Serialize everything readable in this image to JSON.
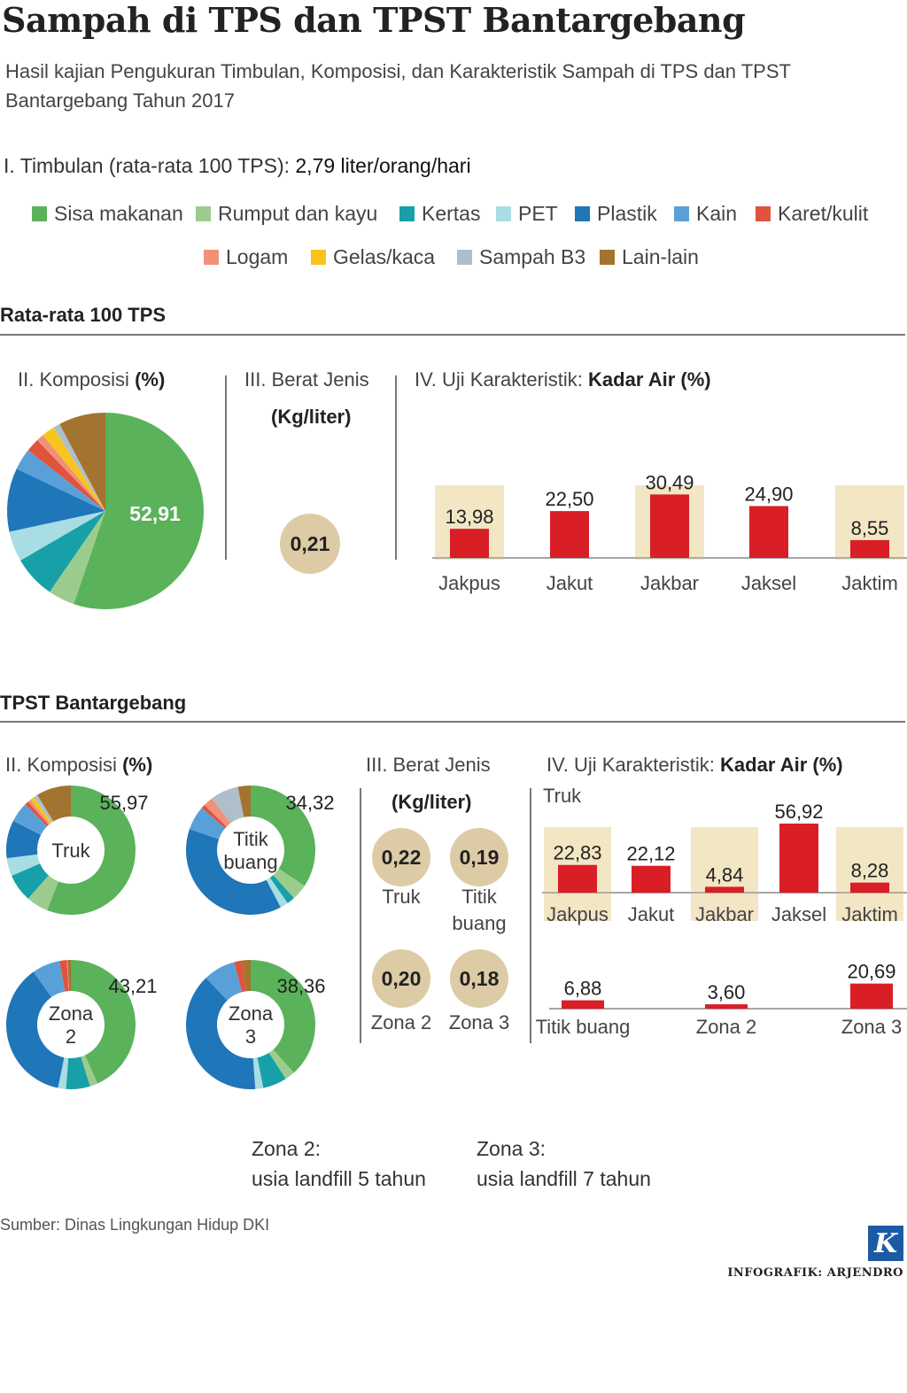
{
  "header": {
    "title": "Sampah di TPS dan TPST Bantargebang",
    "subtitle": "Hasil kajian Pengukuran Timbulan, Komposisi, dan Karakteristik Sampah di TPS dan TPST Bantargebang Tahun 2017",
    "timbulan_label": "I. Timbulan (rata-rata 100 TPS):",
    "timbulan_value": "2,79 liter/orang/hari"
  },
  "legend": [
    {
      "label": "Sisa makanan",
      "color": "#5ab25a"
    },
    {
      "label": "Rumput dan kayu",
      "color": "#9ccc8d"
    },
    {
      "label": "Kertas",
      "color": "#17a0a8"
    },
    {
      "label": "PET",
      "color": "#a8dde4"
    },
    {
      "label": "Plastik",
      "color": "#1f76b8"
    },
    {
      "label": "Kain",
      "color": "#5aa0d8"
    },
    {
      "label": "Karet/kulit",
      "color": "#e0533d"
    },
    {
      "label": "Logam",
      "color": "#f1917a"
    },
    {
      "label": "Gelas/kaca",
      "color": "#f7c51c"
    },
    {
      "label": "Sampah B3",
      "color": "#aebfc9"
    },
    {
      "label": "Lain-lain",
      "color": "#a2742f"
    }
  ],
  "section1": {
    "heading": "Rata-rata 100 TPS",
    "komposisi_label": "II. Komposisi",
    "komposisi_unit": "(%)",
    "berat_label": "III. Berat Jenis",
    "berat_unit": "(Kg/liter)",
    "berat_value": "0,21",
    "kadar_label": "IV. Uji Karakteristik:",
    "kadar_bold": "Kadar Air (%)"
  },
  "section2": {
    "heading": "TPST Bantargebang",
    "komposisi_label": "II. Komposisi",
    "komposisi_unit": "(%)",
    "berat_label": "III. Berat Jenis",
    "berat_unit": "(Kg/liter)",
    "berat_items": [
      {
        "value": "0,22",
        "label": "Truk"
      },
      {
        "value": "0,19",
        "label": "Titik buang"
      },
      {
        "value": "0,20",
        "label": "Zona 2"
      },
      {
        "value": "0,18",
        "label": "Zona 3"
      }
    ],
    "kadar_label": "IV. Uji Karakteristik:",
    "kadar_bold": "Kadar Air (%)",
    "truk_label": "Truk"
  },
  "notes": {
    "zona2_title": "Zona 2:",
    "zona2_text": "usia landfill 5 tahun",
    "zona3_title": "Zona 3:",
    "zona3_text": "usia landfill 7 tahun"
  },
  "footer": {
    "source": "Sumber: Dinas Lingkungan Hidup DKI",
    "credit": "INFOGRAFIK: ARJENDRO",
    "logo": "K"
  },
  "chart_data": [
    {
      "id": "pie-100tps",
      "type": "pie",
      "title": "II. Komposisi (%)",
      "categories": [
        "Sisa makanan",
        "Rumput dan kayu",
        "Kertas",
        "PET",
        "Plastik",
        "Kain",
        "Karet/kulit",
        "Logam",
        "Gelas/kaca",
        "Sampah B3",
        "Lain-lain"
      ],
      "values": [
        52.91,
        4.2,
        6.7,
        4.8,
        10.0,
        3.4,
        2.1,
        1.2,
        2.0,
        1.1,
        7.4
      ],
      "value_label": "52,91"
    },
    {
      "id": "bar-100tps-kadar",
      "type": "bar",
      "title": "IV. Uji Karakteristik: Kadar Air (%)",
      "categories": [
        "Jakpus",
        "Jakut",
        "Jakbar",
        "Jaksel",
        "Jaktim"
      ],
      "values": [
        13.98,
        22.5,
        30.49,
        24.9,
        8.55
      ],
      "labels": [
        "13,98",
        "22,50",
        "30,49",
        "24,90",
        "8,55"
      ],
      "highlight": [
        true,
        false,
        true,
        false,
        true
      ]
    },
    {
      "id": "donut-truk",
      "type": "pie",
      "title": "Truk",
      "categories": [
        "Sisa makanan",
        "Rumput dan kayu",
        "Kertas",
        "PET",
        "Plastik",
        "Kain",
        "Karet/kulit",
        "Logam",
        "Gelas/kaca",
        "Sampah B3",
        "Lain-lain"
      ],
      "values": [
        55.97,
        5.5,
        7.0,
        4.5,
        9.5,
        5.0,
        1.0,
        0.8,
        1.0,
        1.0,
        8.7
      ],
      "value_label": "55,97"
    },
    {
      "id": "donut-titik",
      "type": "pie",
      "title": "Titik buang",
      "categories": [
        "Sisa makanan",
        "Rumput dan kayu",
        "Kertas",
        "PET",
        "Plastik",
        "Kain",
        "Karet/kulit",
        "Logam",
        "Gelas/kaca",
        "Sampah B3",
        "Lain-lain"
      ],
      "values": [
        34.32,
        4.0,
        2.0,
        2.0,
        38.0,
        6.0,
        1.0,
        2.5,
        0.0,
        7.0,
        3.2
      ],
      "value_label": "34,32"
    },
    {
      "id": "donut-zona2",
      "type": "pie",
      "title": "Zona 2",
      "categories": [
        "Sisa makanan",
        "Rumput dan kayu",
        "Kertas",
        "PET",
        "Plastik",
        "Kain",
        "Karet/kulit",
        "Logam",
        "Gelas/kaca",
        "Sampah B3",
        "Lain-lain"
      ],
      "values": [
        43.21,
        2.0,
        6.0,
        2.0,
        37.0,
        7.0,
        1.8,
        0.2,
        0.0,
        0.0,
        0.8
      ],
      "value_label": "43,21"
    },
    {
      "id": "donut-zona3",
      "type": "pie",
      "title": "Zona 3",
      "categories": [
        "Sisa makanan",
        "Rumput dan kayu",
        "Kertas",
        "PET",
        "Plastik",
        "Kain",
        "Karet/kulit",
        "Logam",
        "Gelas/kaca",
        "Sampah B3",
        "Lain-lain"
      ],
      "values": [
        38.36,
        2.5,
        6.0,
        2.0,
        39.0,
        8.0,
        2.0,
        0.0,
        0.0,
        0.0,
        2.14
      ],
      "value_label": "38,36"
    },
    {
      "id": "bar-truk-kadar",
      "type": "bar",
      "title": "Truk",
      "categories": [
        "Jakpus",
        "Jakut",
        "Jakbar",
        "Jaksel",
        "Jaktim"
      ],
      "values": [
        22.83,
        22.12,
        4.84,
        56.92,
        8.28
      ],
      "labels": [
        "22,83",
        "22,12",
        "4,84",
        "56,92",
        "8,28"
      ],
      "highlight": [
        true,
        false,
        true,
        false,
        true
      ]
    },
    {
      "id": "bar-lokasi-kadar",
      "type": "bar",
      "categories": [
        "Titik buang",
        "Zona 2",
        "Zona 3"
      ],
      "values": [
        6.88,
        3.6,
        20.69
      ],
      "labels": [
        "6,88",
        "3,60",
        "20,69"
      ]
    }
  ]
}
